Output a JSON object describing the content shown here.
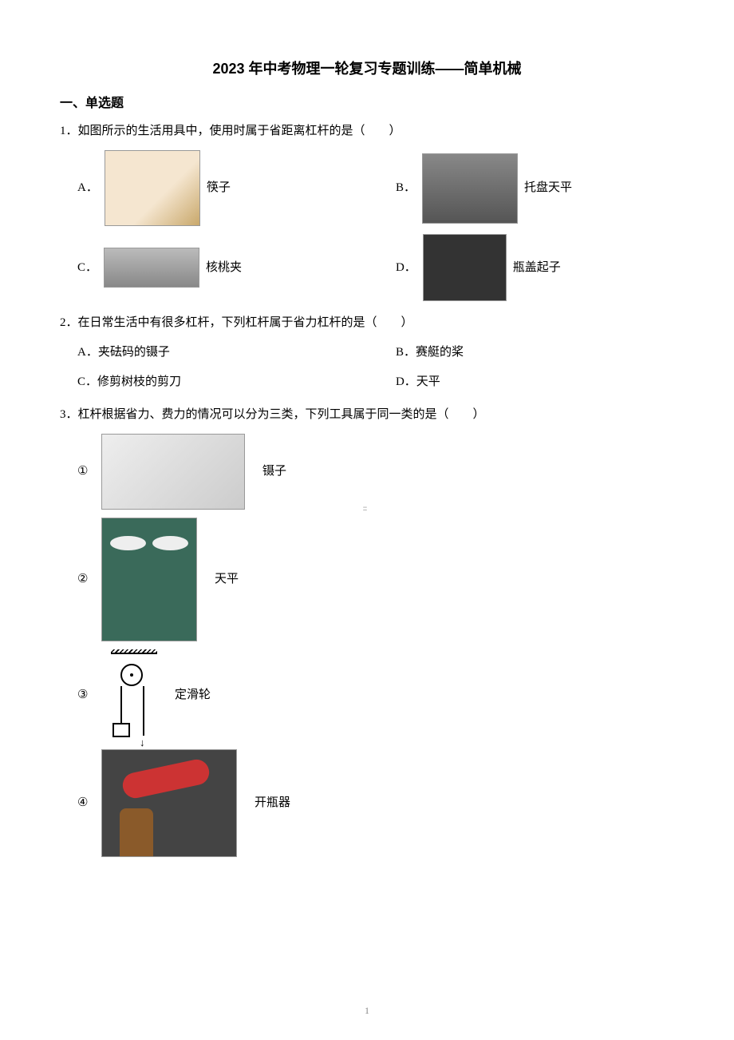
{
  "title": "2023 年中考物理一轮复习专题训练——简单机械",
  "section1": {
    "header": "一、单选题",
    "q1": {
      "text": "1．如图所示的生活用具中，使用时属于省距离杠杆的是（　　）",
      "choices": {
        "A": {
          "label": "A．",
          "name": "筷子"
        },
        "B": {
          "label": "B．",
          "name": "托盘天平"
        },
        "C": {
          "label": "C．",
          "name": "核桃夹"
        },
        "D": {
          "label": "D．",
          "name": "瓶盖起子"
        }
      }
    },
    "q2": {
      "text": "2．在日常生活中有很多杠杆，下列杠杆属于省力杠杆的是（　　）",
      "choices": {
        "A": "A．夹砝码的镊子",
        "B": "B．赛艇的桨",
        "C": "C．修剪树枝的剪刀",
        "D": "D．天平"
      }
    },
    "q3": {
      "text": "3．杠杆根据省力、费力的情况可以分为三类，下列工具属于同一类的是（　　）",
      "items": {
        "i1": {
          "num": "①",
          "name": "镊子"
        },
        "i2": {
          "num": "②",
          "name": "天平"
        },
        "i3": {
          "num": "③",
          "name": "定滑轮"
        },
        "i4": {
          "num": "④",
          "name": "开瓶器"
        }
      }
    }
  },
  "pageNumber": "1",
  "colors": {
    "text": "#000000",
    "background": "#ffffff",
    "pageNum": "#888888"
  }
}
